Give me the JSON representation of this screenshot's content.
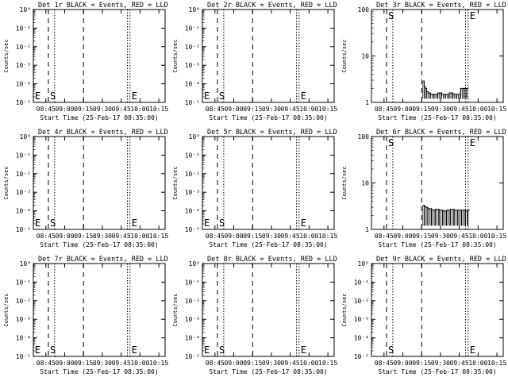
{
  "chart_data": [
    {
      "title": "Det 1r BLACK = Events, RED = LLD",
      "type": "line",
      "xlabel": "Start Time (25-Feb-17 08:35:00)",
      "ylabel": "Counts/sec",
      "x_ticks": [
        "08:45",
        "09:00",
        "09:15",
        "09:30",
        "09:45",
        "10:00",
        "10:15"
      ],
      "y_ticks": [
        "10^0",
        "10^-1",
        "10^-2",
        "10^-3",
        "10^-4",
        "10^-5"
      ],
      "scale": "log",
      "markers": [
        {
          "label": "E",
          "time": "08:35"
        },
        {
          "label": "S",
          "time": "08:47"
        },
        {
          "label": "E",
          "time": "09:52"
        }
      ],
      "series": []
    },
    {
      "title": "Det 2r BLACK = Events, RED = LLD",
      "type": "line",
      "xlabel": "Start Time (25-Feb-17 08:35:00)",
      "ylabel": "Counts/sec",
      "x_ticks": [
        "08:45",
        "09:00",
        "09:15",
        "09:30",
        "09:45",
        "10:00",
        "10:15"
      ],
      "y_ticks": [
        "10^0",
        "10^-1",
        "10^-2",
        "10^-3",
        "10^-4",
        "10^-5"
      ],
      "scale": "log",
      "markers": [
        {
          "label": "E",
          "time": "08:35"
        },
        {
          "label": "S",
          "time": "08:47"
        },
        {
          "label": "E",
          "time": "09:52"
        }
      ],
      "series": []
    },
    {
      "title": "Det 3r BLACK = Events, RED = LLD",
      "type": "line",
      "xlabel": "Start Time (25-Feb-17 08:35:00)",
      "ylabel": "Counts/sec",
      "x_ticks": [
        "08:45",
        "09:00",
        "09:15",
        "09:30",
        "09:45",
        "10:00",
        "10:15"
      ],
      "y_ticks": [
        "100",
        "10",
        "1"
      ],
      "scale": "log",
      "markers": [
        {
          "label": "S",
          "time": "08:47"
        },
        {
          "label": "E",
          "time": "09:52"
        }
      ],
      "series": [
        {
          "name": "",
          "style": "hatched",
          "x": [
            "09:16",
            "09:17",
            "09:18",
            "09:19",
            "09:20",
            "09:22",
            "09:25",
            "09:28",
            "09:31",
            "09:34",
            "09:37",
            "09:40",
            "09:43",
            "09:46",
            "09:49",
            "09:51"
          ],
          "y": [
            2.9,
            2.2,
            2.0,
            1.7,
            1.6,
            1.5,
            1.5,
            1.6,
            1.5,
            1.5,
            1.6,
            1.5,
            1.5,
            2.0,
            2.0,
            2.0
          ]
        }
      ]
    },
    {
      "title": "Det 4r BLACK = Events, RED = LLD",
      "type": "line",
      "xlabel": "Start Time (25-Feb-17 08:35:00)",
      "ylabel": "Counts/sec",
      "x_ticks": [
        "08:45",
        "09:00",
        "09:15",
        "09:30",
        "09:45",
        "10:00",
        "10:15"
      ],
      "y_ticks": [
        "10^0",
        "10^-1",
        "10^-2",
        "10^-3",
        "10^-4",
        "10^-5"
      ],
      "scale": "log",
      "markers": [
        {
          "label": "E",
          "time": "08:35"
        },
        {
          "label": "S",
          "time": "08:47"
        },
        {
          "label": "E",
          "time": "09:52"
        }
      ],
      "series": []
    },
    {
      "title": "Det 5r BLACK = Events, RED = LLD",
      "type": "line",
      "xlabel": "Start Time (25-Feb-17 08:35:00)",
      "ylabel": "Counts/sec",
      "x_ticks": [
        "08:45",
        "09:00",
        "09:15",
        "09:30",
        "09:45",
        "10:00",
        "10:15"
      ],
      "y_ticks": [
        "10^0",
        "10^-1",
        "10^-2",
        "10^-3",
        "10^-4",
        "10^-5"
      ],
      "scale": "log",
      "markers": [
        {
          "label": "E",
          "time": "08:35"
        },
        {
          "label": "S",
          "time": "08:47"
        },
        {
          "label": "E",
          "time": "09:52"
        }
      ],
      "series": []
    },
    {
      "title": "Det 6r BLACK = Events, RED = LLD",
      "type": "line",
      "xlabel": "Start Time (25-Feb-17 08:35:00)",
      "ylabel": "Counts/sec",
      "x_ticks": [
        "08:45",
        "09:00",
        "09:15",
        "09:30",
        "09:45",
        "10:00",
        "10:15"
      ],
      "y_ticks": [
        "100",
        "10",
        "1"
      ],
      "scale": "log",
      "markers": [
        {
          "label": "S",
          "time": "08:47"
        },
        {
          "label": "E",
          "time": "09:52"
        }
      ],
      "series": [
        {
          "name": "",
          "style": "hatched",
          "x": [
            "09:16",
            "09:17",
            "09:18",
            "09:20",
            "09:23",
            "09:26",
            "09:29",
            "09:32",
            "09:35",
            "09:38",
            "09:41",
            "09:44",
            "09:47",
            "09:50",
            "09:52"
          ],
          "y": [
            3.3,
            3.2,
            3.0,
            2.8,
            2.6,
            2.7,
            2.6,
            2.5,
            2.6,
            2.7,
            2.6,
            2.6,
            2.6,
            2.5,
            2.6
          ]
        }
      ]
    },
    {
      "title": "Det 7r BLACK = Events, RED = LLD",
      "type": "line",
      "xlabel": "Start Time (25-Feb-17 08:35:00)",
      "ylabel": "Counts/sec",
      "x_ticks": [
        "08:45",
        "09:00",
        "09:15",
        "09:30",
        "09:45",
        "10:00",
        "10:15"
      ],
      "y_ticks": [
        "10^0",
        "10^-1",
        "10^-2",
        "10^-3",
        "10^-4",
        "10^-5"
      ],
      "scale": "log",
      "markers": [
        {
          "label": "E",
          "time": "08:35"
        },
        {
          "label": "S",
          "time": "08:47"
        },
        {
          "label": "E",
          "time": "09:52"
        }
      ],
      "series": []
    },
    {
      "title": "Det 8r BLACK = Events, RED = LLD",
      "type": "line",
      "xlabel": "Start Time (25-Feb-17 08:35:00)",
      "ylabel": "Counts/sec",
      "x_ticks": [
        "08:45",
        "09:00",
        "09:15",
        "09:30",
        "09:45",
        "10:00",
        "10:15"
      ],
      "y_ticks": [
        "10^0",
        "10^-1",
        "10^-2",
        "10^-3",
        "10^-4",
        "10^-5"
      ],
      "scale": "log",
      "markers": [
        {
          "label": "E",
          "time": "08:35"
        },
        {
          "label": "S",
          "time": "08:47"
        },
        {
          "label": "E",
          "time": "09:52"
        }
      ],
      "series": []
    },
    {
      "title": "Det 9r BLACK = Events, RED = LLD",
      "type": "line",
      "xlabel": "Start Time (25-Feb-17 08:35:00)",
      "ylabel": "Counts/sec",
      "x_ticks": [
        "08:45",
        "09:00",
        "09:15",
        "09:30",
        "09:45",
        "10:00",
        "10:15"
      ],
      "y_ticks": [
        "10^0",
        "10^-1",
        "10^-2",
        "10^-3",
        "10^-4",
        "10^-5"
      ],
      "scale": "log",
      "markers": [
        {
          "label": "S",
          "time": "08:47"
        },
        {
          "label": "E",
          "time": "09:52"
        }
      ],
      "series": []
    }
  ]
}
